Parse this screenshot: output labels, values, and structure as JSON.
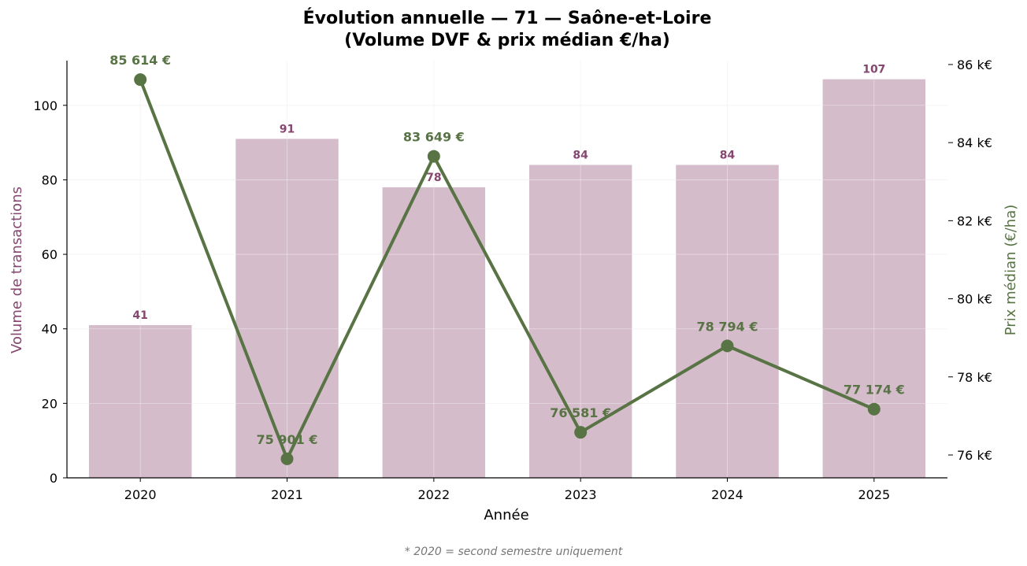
{
  "chart_data": {
    "type": "bar",
    "title_line1": "Évolution annuelle — 71 — Saône-et-Loire",
    "title_line2": "(Volume DVF & prix médian €/ha)",
    "xlabel": "Année",
    "ylabel_left": "Volume de transactions",
    "ylabel_right": "Prix médian (€/ha)",
    "footnote": "* 2020 = second semestre uniquement",
    "categories": [
      "2020",
      "2021",
      "2022",
      "2023",
      "2024",
      "2025"
    ],
    "series": [
      {
        "type": "bar",
        "axis": "left",
        "values": [
          41,
          91,
          78,
          84,
          84,
          107
        ],
        "labels": [
          "41",
          "91",
          "78",
          "84",
          "84",
          "107"
        ],
        "color": "#d4bccb",
        "label_color": "#85476f"
      },
      {
        "type": "line",
        "axis": "right",
        "values": [
          85614,
          75901,
          83649,
          76581,
          78794,
          77174
        ],
        "labels": [
          "85 614 €",
          "75 901 €",
          "83 649 €",
          "76 581 €",
          "78 794 €",
          "77 174 €"
        ],
        "color": "#587344"
      }
    ],
    "ylim_left": [
      0,
      112
    ],
    "yticks_left": [
      0,
      20,
      40,
      60,
      80,
      100
    ],
    "ylim_right": [
      75415,
      86100
    ],
    "yticks_right": [
      76000,
      78000,
      80000,
      82000,
      84000,
      86000
    ],
    "yticklabels_right": [
      "76 k€",
      "78 k€",
      "80 k€",
      "82 k€",
      "84 k€",
      "86 k€"
    ],
    "grid": true,
    "left_label_color": "#85476f",
    "right_label_color": "#587344"
  }
}
